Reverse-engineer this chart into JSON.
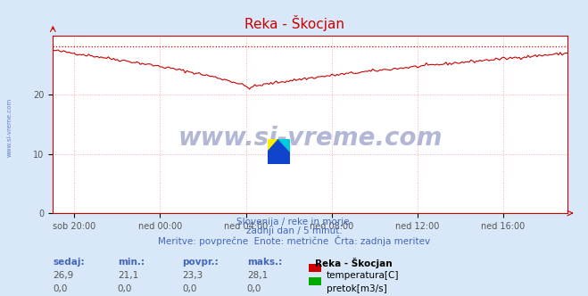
{
  "title": "Reka - Škocjan",
  "title_color": "#cc0000",
  "bg_color": "#d8e8f8",
  "plot_bg_color": "#ffffff",
  "grid_color": "#ffaaaa",
  "xlabel_ticks": [
    "sob 20:00",
    "ned 00:00",
    "ned 04:00",
    "ned 08:00",
    "ned 12:00",
    "ned 16:00"
  ],
  "xtick_positions": [
    0.0417,
    0.2083,
    0.375,
    0.5417,
    0.7083,
    0.875
  ],
  "ylim": [
    0,
    30
  ],
  "yticks": [
    0,
    10,
    20
  ],
  "axis_color": "#cc0000",
  "temp_line_color": "#cc0000",
  "pretok_line_color": "#00aa00",
  "max_val": 28.1,
  "subtitle_line1": "Slovenija / reke in morje.",
  "subtitle_line2": "zadnji dan / 5 minut.",
  "subtitle_line3": "Meritve: povprečne  Enote: metrične  Črta: zadnja meritev",
  "subtitle_color": "#4466bb",
  "legend_title": "Reka - Škocjan",
  "legend_items": [
    "temperatura[C]",
    "pretok[m3/s]"
  ],
  "legend_colors": [
    "#cc0000",
    "#00aa00"
  ],
  "table_headers": [
    "sedaj:",
    "min.:",
    "povpr.:",
    "maks.:"
  ],
  "table_values_temp": [
    "26,9",
    "21,1",
    "23,3",
    "28,1"
  ],
  "table_values_pretok": [
    "0,0",
    "0,0",
    "0,0",
    "0,0"
  ],
  "watermark": "www.si-vreme.com",
  "watermark_color": "#223388",
  "watermark_alpha": 0.35,
  "side_label": "www.si-vreme.com",
  "side_label_color": "#4466bb"
}
